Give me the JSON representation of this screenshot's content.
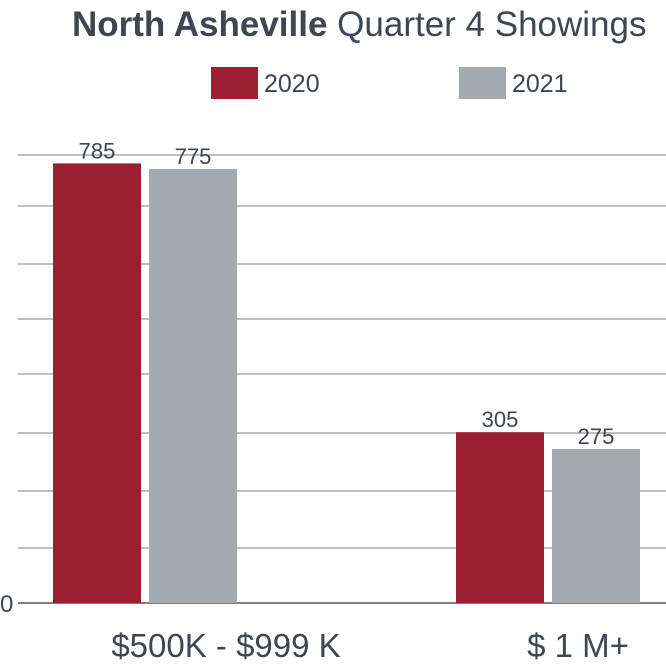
{
  "chart_data": {
    "type": "bar",
    "title_bold": "North Asheville",
    "title_rest": " Quarter 4 Showings",
    "categories": [
      "$500K - $999 K",
      "$ 1 M+"
    ],
    "series": [
      {
        "name": "2020",
        "values": [
          785,
          305
        ],
        "color": "#9b1f30"
      },
      {
        "name": "2021",
        "values": [
          775,
          275
        ],
        "color": "#a3abb0"
      }
    ],
    "value_labels": [
      [
        "785",
        "305"
      ],
      [
        "775",
        "275"
      ]
    ],
    "ylim": [
      0,
      800
    ],
    "y_tick_labels": [
      "0"
    ],
    "grid": true,
    "legend_position": "top-center"
  }
}
